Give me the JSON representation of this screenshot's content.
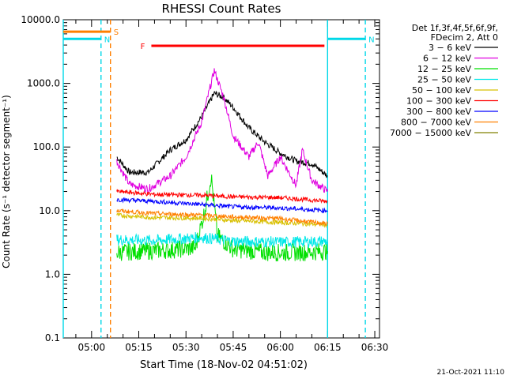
{
  "chart_data": {
    "type": "line",
    "title": "RHESSI Count Rates",
    "xlabel": "Start Time (18-Nov-02 04:51:02)",
    "ylabel": "Count Rate (s⁻¹ detector segment⁻¹)",
    "ylog": true,
    "ylim": [
      0.1,
      10000
    ],
    "yticks": [
      "0.1",
      "1.0",
      "10.0",
      "100.0",
      "1000.0",
      "10000.0"
    ],
    "xlim_minutes": [
      291.0,
      391.5
    ],
    "xticks": [
      "05:00",
      "05:15",
      "05:30",
      "05:45",
      "06:00",
      "06:15",
      "06:30"
    ],
    "legend_header": [
      "Det 1f,3f,4f,5f,6f,9f,",
      "FDecim 2, Att 0"
    ],
    "legend_position": "top-right",
    "timestamp": "21-Oct-2021 11:10",
    "flags": [
      {
        "label": "S",
        "color": "#ff7f00",
        "value": 6500,
        "x_start": "04:51",
        "x_end": "05:06"
      },
      {
        "label": "N",
        "color": "#00d8e8",
        "value": 5000,
        "x_start": "04:51",
        "x_end": "05:03"
      },
      {
        "label": "N",
        "color": "#00d8e8",
        "value": 5000,
        "x_start": "06:15",
        "x_end": "06:27"
      },
      {
        "label": "F",
        "color": "#ff0000",
        "value": 3900,
        "x_start": "05:19",
        "x_end": "06:14"
      }
    ],
    "vlines": [
      {
        "time": "04:51",
        "color": "#00d8e8",
        "style": "solid"
      },
      {
        "time": "05:03",
        "color": "#00d8e8",
        "style": "dashed"
      },
      {
        "time": "05:06",
        "color": "#ff7f00",
        "style": "dashed"
      },
      {
        "time": "06:15",
        "color": "#00d8e8",
        "style": "solid"
      },
      {
        "time": "06:27",
        "color": "#00d8e8",
        "style": "dashed"
      }
    ],
    "series": [
      {
        "name": "3 − 6 keV",
        "color": "#000000",
        "points": [
          [
            "05:08",
            70
          ],
          [
            "05:12",
            40
          ],
          [
            "05:18",
            40
          ],
          [
            "05:25",
            90
          ],
          [
            "05:30",
            130
          ],
          [
            "05:35",
            300
          ],
          [
            "05:39",
            700
          ],
          [
            "05:42",
            600
          ],
          [
            "05:45",
            420
          ],
          [
            "05:50",
            200
          ],
          [
            "05:55",
            120
          ],
          [
            "06:00",
            80
          ],
          [
            "06:05",
            60
          ],
          [
            "06:10",
            55
          ],
          [
            "06:15",
            35
          ]
        ]
      },
      {
        "name": "6 − 12 keV",
        "color": "#e000e0",
        "points": [
          [
            "05:08",
            60
          ],
          [
            "05:12",
            26
          ],
          [
            "05:18",
            22
          ],
          [
            "05:25",
            35
          ],
          [
            "05:30",
            70
          ],
          [
            "05:35",
            250
          ],
          [
            "05:39",
            1600
          ],
          [
            "05:42",
            600
          ],
          [
            "05:45",
            150
          ],
          [
            "05:50",
            70
          ],
          [
            "05:53",
            120
          ],
          [
            "05:56",
            35
          ],
          [
            "06:00",
            70
          ],
          [
            "06:05",
            25
          ],
          [
            "06:07",
            90
          ],
          [
            "06:10",
            30
          ],
          [
            "06:15",
            20
          ]
        ]
      },
      {
        "name": "12 − 25 keV",
        "color": "#00e000",
        "points": [
          [
            "05:08",
            2.2
          ],
          [
            "05:15",
            2.3
          ],
          [
            "05:25",
            2.4
          ],
          [
            "05:33",
            2.6
          ],
          [
            "05:36",
            10
          ],
          [
            "05:38",
            35
          ],
          [
            "05:40",
            4
          ],
          [
            "05:45",
            2.5
          ],
          [
            "05:55",
            2.2
          ],
          [
            "06:05",
            2.2
          ],
          [
            "06:15",
            2.3
          ]
        ]
      },
      {
        "name": "25 − 50 keV",
        "color": "#00e8e8",
        "points": [
          [
            "05:08",
            3.5
          ],
          [
            "05:20",
            3.4
          ],
          [
            "05:35",
            3.8
          ],
          [
            "05:45",
            3.3
          ],
          [
            "06:00",
            3.2
          ],
          [
            "06:15",
            3.3
          ]
        ]
      },
      {
        "name": "50 − 100 keV",
        "color": "#d8c000",
        "points": [
          [
            "05:08",
            8.5
          ],
          [
            "05:20",
            7.8
          ],
          [
            "05:35",
            7.6
          ],
          [
            "05:45",
            7.0
          ],
          [
            "06:00",
            6.5
          ],
          [
            "06:15",
            6.0
          ]
        ]
      },
      {
        "name": "100 − 300 keV",
        "color": "#ff0000",
        "points": [
          [
            "05:08",
            20
          ],
          [
            "05:20",
            18
          ],
          [
            "05:35",
            17.5
          ],
          [
            "05:45",
            16.5
          ],
          [
            "06:00",
            16
          ],
          [
            "06:15",
            14
          ]
        ]
      },
      {
        "name": "300 − 800 keV",
        "color": "#0000ff",
        "points": [
          [
            "05:08",
            15
          ],
          [
            "05:20",
            14
          ],
          [
            "05:35",
            12.5
          ],
          [
            "05:45",
            11.5
          ],
          [
            "06:00",
            11
          ],
          [
            "06:15",
            10
          ]
        ]
      },
      {
        "name": "800 − 7000 keV",
        "color": "#ff8000",
        "points": [
          [
            "05:08",
            10
          ],
          [
            "05:20",
            9
          ],
          [
            "05:35",
            8.5
          ],
          [
            "05:45",
            8
          ],
          [
            "06:00",
            7.5
          ],
          [
            "06:15",
            6.2
          ]
        ]
      },
      {
        "name": "7000 − 15000 keV",
        "color": "#808000",
        "points": []
      }
    ]
  }
}
